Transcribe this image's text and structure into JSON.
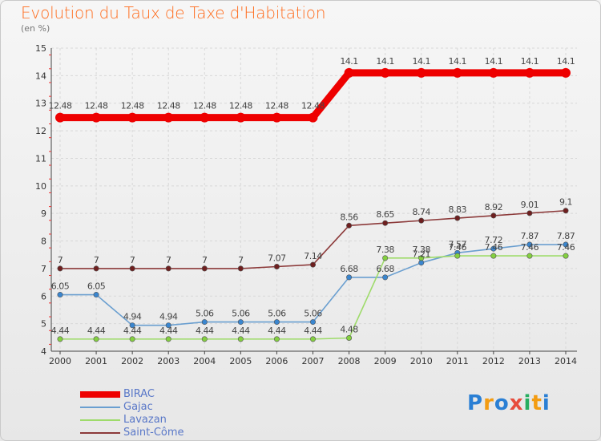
{
  "header": {
    "title": "Evolution du Taux de Taxe d'Habitation",
    "subtitle": "(en %)"
  },
  "logo": {
    "text": "Proxiti",
    "letters": [
      "P",
      "r",
      "o",
      "x",
      "i",
      "t",
      "i"
    ],
    "colors": [
      "#2a7fd4",
      "#f39c12",
      "#2a7fd4",
      "#e74c3c",
      "#27ae60",
      "#f39c12",
      "#2a7fd4"
    ]
  },
  "chart_data": {
    "type": "line",
    "x": [
      "2000",
      "2001",
      "2002",
      "2003",
      "2004",
      "2005",
      "2006",
      "2007",
      "2008",
      "2009",
      "2010",
      "2011",
      "2012",
      "2013",
      "2014"
    ],
    "ylim": [
      4,
      15
    ],
    "yticks": [
      "4",
      "5",
      "6",
      "7",
      "8",
      "9",
      "10",
      "11",
      "12",
      "13",
      "14",
      "15"
    ],
    "grid": true,
    "legend_position": "bottom-left",
    "series": [
      {
        "name": "BIRAC",
        "color": "#ee0000",
        "marker_fill": "#ee0000",
        "width": 9,
        "radius": 6,
        "values": [
          12.48,
          12.48,
          12.48,
          12.48,
          12.48,
          12.48,
          12.48,
          12.48,
          14.1,
          14.1,
          14.1,
          14.1,
          14.1,
          14.1,
          14.1
        ],
        "labels": [
          "12.48",
          "12.48",
          "12.48",
          "12.48",
          "12.48",
          "12.48",
          "12.48",
          "12.48",
          "14.1",
          "14.1",
          "14.1",
          "14.1",
          "14.1",
          "14.1",
          "14.1"
        ],
        "label_pos": "above"
      },
      {
        "name": "Gajac",
        "color": "#6a9fd0",
        "marker_fill": "#3a86cf",
        "width": 1.6,
        "radius": 3.2,
        "values": [
          6.05,
          6.05,
          4.94,
          4.94,
          5.06,
          5.06,
          5.06,
          5.06,
          6.68,
          6.68,
          7.21,
          7.57,
          7.72,
          7.87,
          7.87
        ],
        "labels": [
          "6.05",
          "6.05",
          "4.94",
          "4.94",
          "5.06",
          "5.06",
          "5.06",
          "5.06",
          "6.68",
          "6.68",
          "7.21",
          "7.57",
          "7.72",
          "7.87",
          "7.87"
        ],
        "label_pos": "above"
      },
      {
        "name": "Lavazan",
        "color": "#9edb6a",
        "marker_fill": "#84d040",
        "width": 1.6,
        "radius": 3.2,
        "values": [
          4.44,
          4.44,
          4.44,
          4.44,
          4.44,
          4.44,
          4.44,
          4.44,
          4.48,
          7.38,
          7.38,
          7.46,
          7.46,
          7.46,
          7.46
        ],
        "labels": [
          "4.44",
          "4.44",
          "4.44",
          "4.44",
          "4.44",
          "4.44",
          "4.44",
          "4.44",
          "4.48",
          "7.38",
          "7.38",
          "7.46",
          "7.46",
          "7.46",
          "7.46"
        ],
        "label_pos": "above"
      },
      {
        "name": "Saint-Côme",
        "color": "#8c3a3a",
        "marker_fill": "#6e1f1f",
        "width": 1.6,
        "radius": 3.2,
        "values": [
          7,
          7,
          7,
          7,
          7,
          7,
          7.07,
          7.14,
          8.56,
          8.65,
          8.74,
          8.83,
          8.92,
          9.01,
          9.1
        ],
        "labels": [
          "7",
          "7",
          "7",
          "7",
          "7",
          "7",
          "7.07",
          "7.14",
          "8.56",
          "8.65",
          "8.74",
          "8.83",
          "8.92",
          "9.01",
          "9.1"
        ],
        "label_pos": "above"
      }
    ]
  }
}
